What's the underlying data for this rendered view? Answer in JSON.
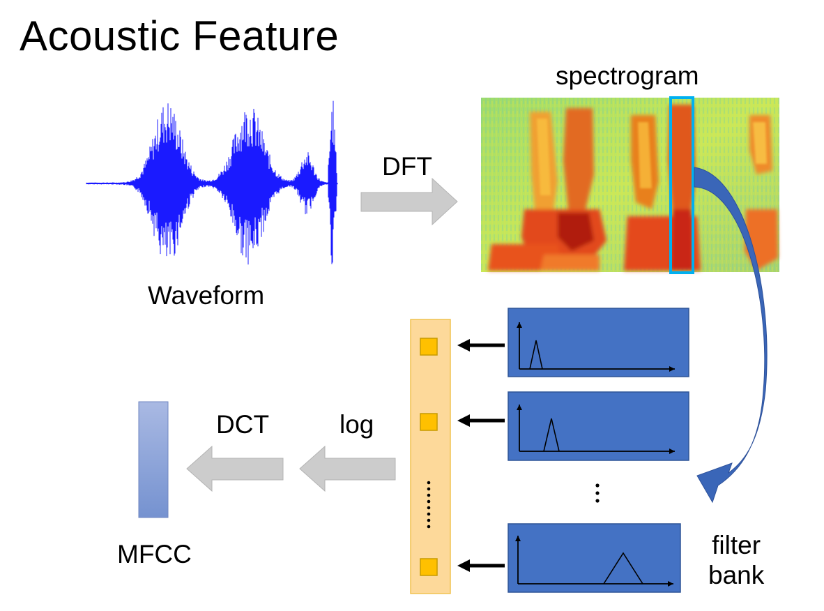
{
  "title": "Acoustic Feature",
  "labels": {
    "spectrogram": "spectrogram",
    "waveform": "Waveform",
    "dft": "DFT",
    "dct": "DCT",
    "log": "log",
    "mfcc": "MFCC",
    "filter_bank_line1": "filter",
    "filter_bank_line2": "bank",
    "ellipsis": "⋮"
  },
  "colors": {
    "waveform": "#1a1aff",
    "arrow_gray": "#cccccc",
    "filter_box": "#4472c4",
    "feature_column": "#fdd99a",
    "feature_cell": "#ffc000",
    "mfcc_top": "#a9b9e3",
    "mfcc_bottom": "#7592d0",
    "highlight_frame": "#00b0f0",
    "curve_arrow": "#3a66b8"
  },
  "icons": [
    "waveform-plot",
    "spectrogram-image",
    "block-arrow-right",
    "block-arrow-left",
    "curved-arrow",
    "triangle-filter"
  ]
}
